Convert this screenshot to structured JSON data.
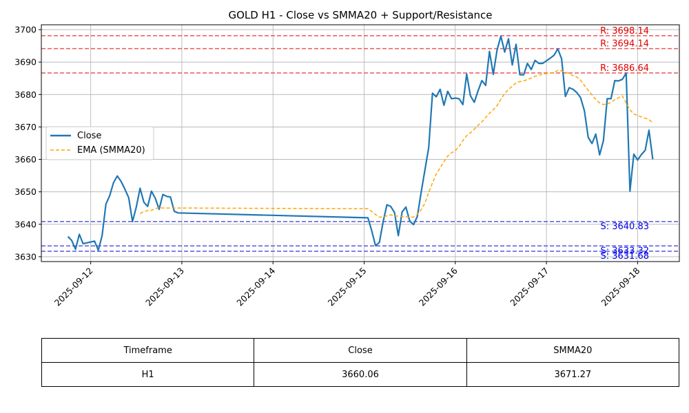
{
  "chart_data": {
    "type": "line",
    "title": "GOLD H1 - Close vs SMMA20 + Support/Resistance",
    "xlabel": "",
    "ylabel": "",
    "xlim": [
      "2025-09-11 11:00",
      "2025-09-18 11:00"
    ],
    "ylim": [
      3628.5,
      3701.5
    ],
    "grid": true,
    "legend": "center-left",
    "x_ticks": [
      "2025-09-12",
      "2025-09-13",
      "2025-09-14",
      "2025-09-15",
      "2025-09-16",
      "2025-09-17",
      "2025-09-18"
    ],
    "y_ticks": [
      3630,
      3640,
      3650,
      3660,
      3670,
      3680,
      3690,
      3700
    ],
    "series": [
      {
        "name": "Close",
        "color": "#1f77b4",
        "style": "solid",
        "x": [
          "2025-09-11 18:00",
          "2025-09-11 19:00",
          "2025-09-11 20:00",
          "2025-09-11 21:00",
          "2025-09-11 22:00",
          "2025-09-12 01:00",
          "2025-09-12 02:00",
          "2025-09-12 03:00",
          "2025-09-12 04:00",
          "2025-09-12 05:00",
          "2025-09-12 06:00",
          "2025-09-12 07:00",
          "2025-09-12 08:00",
          "2025-09-12 09:00",
          "2025-09-12 10:00",
          "2025-09-12 11:00",
          "2025-09-12 12:00",
          "2025-09-12 13:00",
          "2025-09-12 14:00",
          "2025-09-12 15:00",
          "2025-09-12 16:00",
          "2025-09-12 17:00",
          "2025-09-12 18:00",
          "2025-09-12 19:00",
          "2025-09-12 20:00",
          "2025-09-12 21:00",
          "2025-09-12 22:00",
          "2025-09-12 23:00",
          "2025-09-15 01:00",
          "2025-09-15 02:00",
          "2025-09-15 03:00",
          "2025-09-15 04:00",
          "2025-09-15 05:00",
          "2025-09-15 06:00",
          "2025-09-15 07:00",
          "2025-09-15 08:00",
          "2025-09-15 09:00",
          "2025-09-15 10:00",
          "2025-09-15 11:00",
          "2025-09-15 12:00",
          "2025-09-15 13:00",
          "2025-09-15 14:00",
          "2025-09-15 15:00",
          "2025-09-15 16:00",
          "2025-09-15 17:00",
          "2025-09-15 18:00",
          "2025-09-15 19:00",
          "2025-09-15 20:00",
          "2025-09-15 21:00",
          "2025-09-15 22:00",
          "2025-09-15 23:00",
          "2025-09-16 00:00",
          "2025-09-16 01:00",
          "2025-09-16 02:00",
          "2025-09-16 03:00",
          "2025-09-16 04:00",
          "2025-09-16 05:00",
          "2025-09-16 06:00",
          "2025-09-16 07:00",
          "2025-09-16 08:00",
          "2025-09-16 09:00",
          "2025-09-16 10:00",
          "2025-09-16 11:00",
          "2025-09-16 12:00",
          "2025-09-16 13:00",
          "2025-09-16 14:00",
          "2025-09-16 15:00",
          "2025-09-16 16:00",
          "2025-09-16 17:00",
          "2025-09-16 18:00",
          "2025-09-16 19:00",
          "2025-09-16 20:00",
          "2025-09-16 21:00",
          "2025-09-16 22:00",
          "2025-09-16 23:00",
          "2025-09-17 01:00",
          "2025-09-17 02:00",
          "2025-09-17 03:00",
          "2025-09-17 04:00",
          "2025-09-17 05:00",
          "2025-09-17 06:00",
          "2025-09-17 07:00",
          "2025-09-17 08:00",
          "2025-09-17 09:00",
          "2025-09-17 10:00",
          "2025-09-17 11:00",
          "2025-09-17 12:00",
          "2025-09-17 13:00",
          "2025-09-17 14:00",
          "2025-09-17 15:00",
          "2025-09-17 16:00",
          "2025-09-17 17:00",
          "2025-09-17 18:00",
          "2025-09-17 19:00",
          "2025-09-17 20:00",
          "2025-09-17 21:00",
          "2025-09-17 22:00",
          "2025-09-17 23:00",
          "2025-09-18 00:00",
          "2025-09-18 01:00",
          "2025-09-18 02:00",
          "2025-09-18 03:00",
          "2025-09-18 04:00"
        ],
        "values": [
          3636.2,
          3635.0,
          3632.3,
          3636.9,
          3634.0,
          3634.8,
          3632.0,
          3636.5,
          3646.2,
          3648.8,
          3652.8,
          3654.9,
          3653.2,
          3650.8,
          3648.2,
          3640.8,
          3645.3,
          3651.1,
          3646.8,
          3645.5,
          3650.2,
          3648.0,
          3644.6,
          3649.2,
          3648.6,
          3648.4,
          3644.0,
          3643.5,
          3642.0,
          3638.0,
          3633.4,
          3634.4,
          3640.8,
          3646.0,
          3645.5,
          3643.6,
          3636.5,
          3643.8,
          3645.3,
          3641.0,
          3639.9,
          3642.4,
          3649.8,
          3656.7,
          3663.6,
          3680.4,
          3679.3,
          3681.6,
          3676.7,
          3681.0,
          3678.7,
          3678.9,
          3678.7,
          3676.9,
          3686.3,
          3679.6,
          3677.6,
          3681.2,
          3684.3,
          3682.8,
          3693.3,
          3686.2,
          3693.7,
          3698.0,
          3693.1,
          3697.2,
          3689.1,
          3695.5,
          3686.1,
          3686.1,
          3689.6,
          3687.7,
          3690.5,
          3689.6,
          3689.6,
          3691.2,
          3692.1,
          3694.1,
          3691.0,
          3679.4,
          3682.1,
          3681.6,
          3680.6,
          3679.0,
          3675.0,
          3666.8,
          3664.9,
          3667.8,
          3661.4,
          3665.8,
          3678.7,
          3678.7,
          3684.3,
          3684.2,
          3684.7,
          3686.6,
          3650.2,
          3661.6,
          3659.8,
          3661.5,
          3662.8,
          3669.0,
          3660.06
        ]
      },
      {
        "name": "EMA (SMMA20)",
        "color": "#ffa500",
        "style": "dashed",
        "x": [
          "2025-09-12 13:00",
          "2025-09-12 14:00",
          "2025-09-12 15:00",
          "2025-09-12 16:00",
          "2025-09-12 17:00",
          "2025-09-12 18:00",
          "2025-09-12 19:00",
          "2025-09-12 20:00",
          "2025-09-12 21:00",
          "2025-09-12 22:00",
          "2025-09-12 23:00",
          "2025-09-15 01:00",
          "2025-09-15 02:00",
          "2025-09-15 03:00",
          "2025-09-15 04:00",
          "2025-09-15 05:00",
          "2025-09-15 06:00",
          "2025-09-15 07:00",
          "2025-09-15 08:00",
          "2025-09-15 09:00",
          "2025-09-15 10:00",
          "2025-09-15 11:00",
          "2025-09-15 12:00",
          "2025-09-15 13:00",
          "2025-09-15 14:00",
          "2025-09-15 15:00",
          "2025-09-15 16:00",
          "2025-09-15 17:00",
          "2025-09-15 18:00",
          "2025-09-15 19:00",
          "2025-09-15 20:00",
          "2025-09-15 21:00",
          "2025-09-15 22:00",
          "2025-09-15 23:00",
          "2025-09-16 00:00",
          "2025-09-16 01:00",
          "2025-09-16 02:00",
          "2025-09-16 03:00",
          "2025-09-16 04:00",
          "2025-09-16 05:00",
          "2025-09-16 06:00",
          "2025-09-16 07:00",
          "2025-09-16 08:00",
          "2025-09-16 09:00",
          "2025-09-16 10:00",
          "2025-09-16 11:00",
          "2025-09-16 12:00",
          "2025-09-16 13:00",
          "2025-09-16 14:00",
          "2025-09-16 15:00",
          "2025-09-16 16:00",
          "2025-09-16 17:00",
          "2025-09-16 18:00",
          "2025-09-16 19:00",
          "2025-09-16 20:00",
          "2025-09-16 21:00",
          "2025-09-16 22:00",
          "2025-09-16 23:00",
          "2025-09-17 01:00",
          "2025-09-17 02:00",
          "2025-09-17 03:00",
          "2025-09-17 04:00",
          "2025-09-17 05:00",
          "2025-09-17 06:00",
          "2025-09-17 07:00",
          "2025-09-17 08:00",
          "2025-09-17 09:00",
          "2025-09-17 10:00",
          "2025-09-17 11:00",
          "2025-09-17 12:00",
          "2025-09-17 13:00",
          "2025-09-17 14:00",
          "2025-09-17 15:00",
          "2025-09-17 16:00",
          "2025-09-17 17:00",
          "2025-09-17 18:00",
          "2025-09-17 19:00",
          "2025-09-17 20:00",
          "2025-09-17 21:00",
          "2025-09-17 22:00",
          "2025-09-17 23:00",
          "2025-09-18 00:00",
          "2025-09-18 01:00",
          "2025-09-18 02:00",
          "2025-09-18 03:00",
          "2025-09-18 04:00"
        ],
        "values": [
          3643.3,
          3643.9,
          3644.2,
          3644.3,
          3644.8,
          3645.2,
          3645.0,
          3645.0,
          3645.0,
          3645.0,
          3645.0,
          3644.8,
          3644.0,
          3643.0,
          3642.2,
          3642.2,
          3642.6,
          3642.9,
          3642.6,
          3642.5,
          3642.4,
          3642.3,
          3642.2,
          3642.2,
          3643.0,
          3644.5,
          3646.5,
          3649.8,
          3652.8,
          3655.5,
          3657.4,
          3659.3,
          3661.0,
          3662.0,
          3662.7,
          3664.0,
          3665.8,
          3667.3,
          3668.2,
          3669.3,
          3670.5,
          3671.6,
          3672.9,
          3674.2,
          3675.3,
          3676.6,
          3678.5,
          3680.3,
          3681.6,
          3682.6,
          3683.6,
          3684.0,
          3684.2,
          3684.6,
          3685.1,
          3685.6,
          3685.9,
          3686.3,
          3686.6,
          3686.8,
          3687.4,
          3687.3,
          3686.9,
          3686.4,
          3685.8,
          3685.4,
          3684.4,
          3682.8,
          3681.3,
          3679.9,
          3678.5,
          3677.4,
          3676.9,
          3677.1,
          3677.6,
          3678.4,
          3679.0,
          3679.6,
          3677.4,
          3675.3,
          3674.0,
          3673.5,
          3673.1,
          3672.7,
          3672.3,
          3671.27
        ]
      }
    ],
    "lines": [
      {
        "kind": "resistance",
        "value": 3698.14,
        "label": "R: 3698.14",
        "color": "#e8393a"
      },
      {
        "kind": "resistance",
        "value": 3694.14,
        "label": "R: 3694.14",
        "color": "#e8393a"
      },
      {
        "kind": "resistance",
        "value": 3686.64,
        "label": "R: 3686.64",
        "color": "#e8393a"
      },
      {
        "kind": "support",
        "value": 3640.83,
        "label": "S: 3640.83",
        "color": "#3a3ad6"
      },
      {
        "kind": "support",
        "value": 3633.32,
        "label": "S: 3633.32",
        "color": "#3a3ad6"
      },
      {
        "kind": "support",
        "value": 3631.68,
        "label": "S: 3631.68",
        "color": "#3a3ad6"
      }
    ]
  },
  "table": {
    "headers": [
      "Timeframe",
      "Close",
      "SMMA20"
    ],
    "row": [
      "H1",
      "3660.06",
      "3671.27"
    ]
  }
}
